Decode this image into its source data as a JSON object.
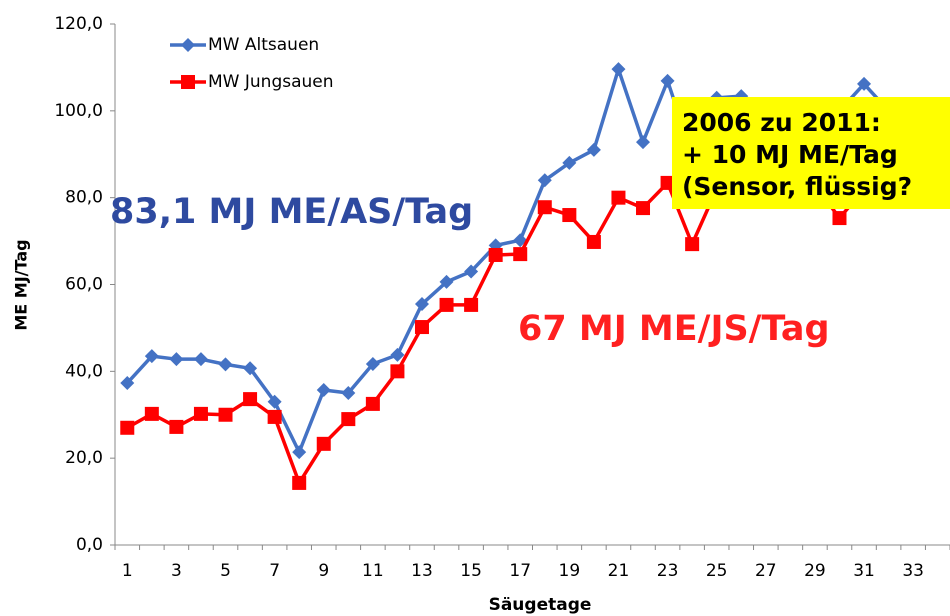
{
  "chart_data": {
    "type": "line",
    "xlabel": "Säugetage",
    "ylabel": "ME MJ/Tag",
    "categories": [
      "1",
      null,
      "3",
      null,
      "5",
      null,
      "7",
      null,
      "9",
      null,
      "11",
      null,
      "13",
      null,
      "15",
      null,
      "17",
      null,
      "19",
      null,
      "21",
      null,
      "23",
      null,
      "25",
      null,
      "27",
      null,
      "29",
      null,
      "31",
      null,
      "33",
      null
    ],
    "series": [
      {
        "name": "MW Altsauen",
        "color": "#4472c4",
        "marker": "diamond",
        "values": [
          37.3,
          43.5,
          42.8,
          42.8,
          41.6,
          40.7,
          33.0,
          21.4,
          35.7,
          35.0,
          41.7,
          43.8,
          55.5,
          60.6,
          63.0,
          69.0,
          70.2,
          84.0,
          88.0,
          91.0,
          109.6,
          92.8,
          106.9,
          90.0,
          103.0,
          103.4,
          98.0,
          100.0,
          101.0,
          100.0,
          106.2,
          100.0,
          99.0,
          null
        ]
      },
      {
        "name": "MW Jungsauen",
        "color": "#ff0000",
        "marker": "square",
        "values": [
          27.0,
          30.2,
          27.2,
          30.2,
          30.0,
          33.6,
          29.5,
          14.3,
          23.3,
          29.0,
          32.5,
          40.0,
          50.2,
          55.3,
          55.3,
          66.8,
          67.0,
          77.8,
          76.0,
          69.8,
          80.0,
          77.6,
          83.4,
          69.3,
          82.0,
          83.0,
          82.0,
          84.0,
          83.0,
          75.3,
          82.0,
          80.0,
          80.0,
          null
        ]
      }
    ],
    "ylim": [
      0,
      120
    ],
    "yticks": [
      {
        "value": 0,
        "label": "0,0"
      },
      {
        "value": 20,
        "label": "20,0"
      },
      {
        "value": 40,
        "label": "40,0"
      },
      {
        "value": 60,
        "label": "60,0"
      },
      {
        "value": 80,
        "label": "80,0"
      },
      {
        "value": 100,
        "label": "100,0"
      },
      {
        "value": 120,
        "label": "120,0"
      }
    ],
    "grid": false,
    "legend": "upper left",
    "annotations": [
      {
        "text": "83,1 MJ ME/AS/Tag",
        "color": "#2e4aa0"
      },
      {
        "text": "67 MJ ME/JS/Tag",
        "color": "#ff2020"
      }
    ],
    "callout": {
      "lines": [
        "2006 zu 2011:",
        "+ 10 MJ ME/Tag",
        "(Sensor, flüssig?"
      ],
      "color": "#ffff00"
    }
  }
}
